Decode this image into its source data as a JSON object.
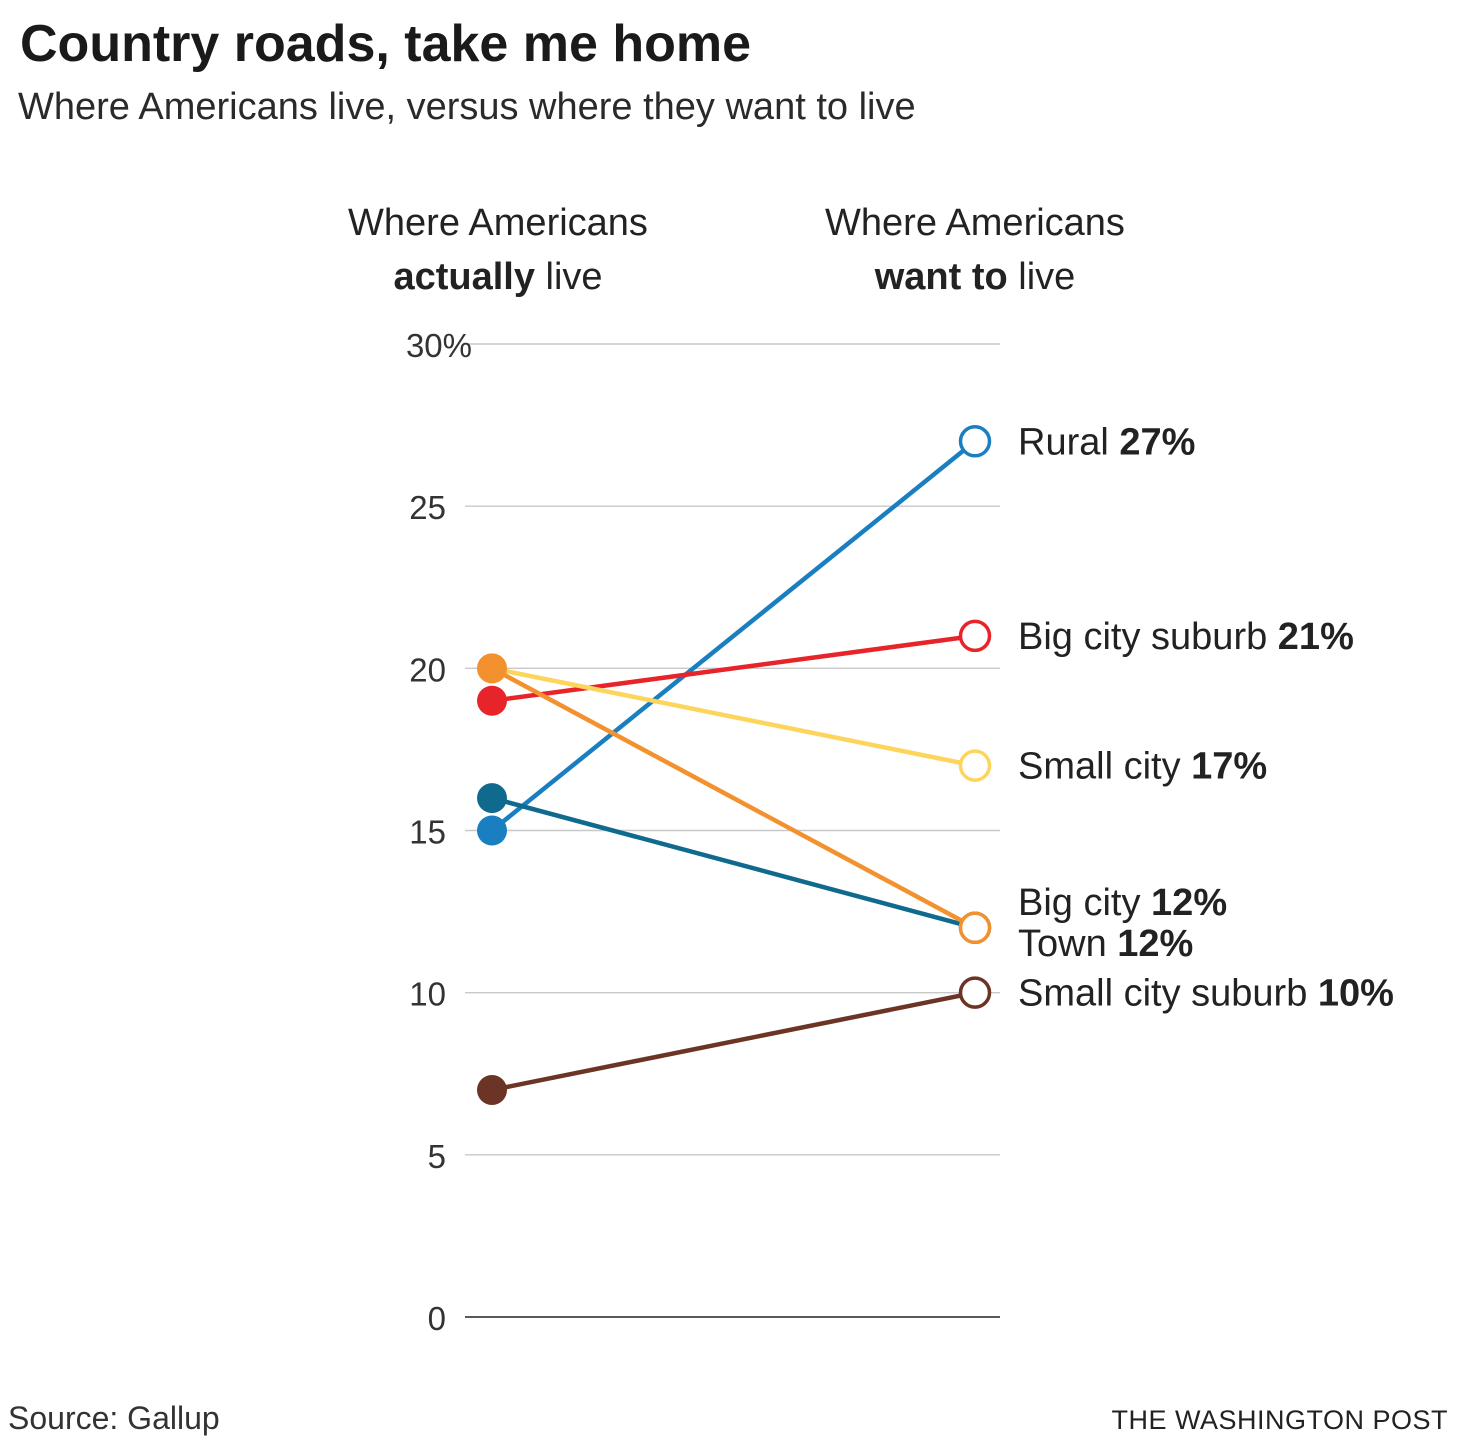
{
  "title": "Country roads, take me home",
  "subtitle": "Where Americans live, versus where they want to live",
  "column_headers": {
    "left": {
      "line1": "Where Americans",
      "bold": "actually",
      "rest": " live"
    },
    "right": {
      "line1": "Where Americans",
      "bold": "want to",
      "rest": " live"
    }
  },
  "source": "Source: Gallup",
  "credit": "THE WASHINGTON POST",
  "chart_data": {
    "type": "line",
    "title": "Country roads, take me home",
    "subtitle": "Where Americans live, versus where they want to live",
    "categories": [
      "Where Americans actually live",
      "Where Americans want to live"
    ],
    "ylim": [
      0,
      30
    ],
    "yticks": [
      {
        "value": 0,
        "label": "0"
      },
      {
        "value": 5,
        "label": "5"
      },
      {
        "value": 10,
        "label": "10"
      },
      {
        "value": 15,
        "label": "15"
      },
      {
        "value": 20,
        "label": "20"
      },
      {
        "value": 25,
        "label": "25"
      },
      {
        "value": 30,
        "label": "30%"
      }
    ],
    "grid": true,
    "series": [
      {
        "name": "Rural",
        "values": [
          15,
          27
        ],
        "color": "#1a7fc1",
        "label": "Rural",
        "value_label": "27%"
      },
      {
        "name": "Big city suburb",
        "values": [
          19,
          21
        ],
        "color": "#e8242b",
        "label": "Big city suburb",
        "value_label": "21%"
      },
      {
        "name": "Small city",
        "values": [
          20,
          17
        ],
        "color": "#fdd55c",
        "label": "Small city",
        "value_label": "17%"
      },
      {
        "name": "Big city",
        "values": [
          16,
          12
        ],
        "color": "#0f6a8e",
        "label": "Big city",
        "value_label": "12%"
      },
      {
        "name": "Town",
        "values": [
          20,
          12
        ],
        "color": "#f3912e",
        "label": "Town",
        "value_label": "12%"
      },
      {
        "name": "Small city suburb",
        "values": [
          7,
          10
        ],
        "color": "#6b3424",
        "label": "Small city suburb",
        "value_label": "10%"
      }
    ]
  }
}
